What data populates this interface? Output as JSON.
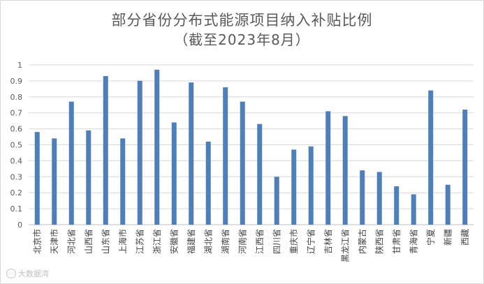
{
  "chart_data": {
    "type": "bar",
    "title": "部分省份分布式能源项目纳入补贴比例",
    "subtitle": "（截至2023年8月）",
    "xlabel": "",
    "ylabel": "",
    "ylim": [
      0,
      1
    ],
    "yticks": [
      "0",
      "0.1",
      "0.2",
      "0.3",
      "0.4",
      "0.5",
      "0.6",
      "0.7",
      "0.8",
      "0.9",
      "1"
    ],
    "grid": true,
    "legend": "none",
    "bar_color": "#4f7fba",
    "categories": [
      "北京市",
      "天津市",
      "河北省",
      "山西省",
      "山东省",
      "上海市",
      "江苏省",
      "浙江省",
      "安徽省",
      "福建省",
      "湖北省",
      "湖南省",
      "河南省",
      "江西省",
      "四川省",
      "重庆市",
      "辽宁省",
      "吉林省",
      "黑龙江省",
      "内蒙古",
      "陕西省",
      "甘肃省",
      "青海省",
      "宁夏",
      "新疆",
      "西藏"
    ],
    "values": [
      0.58,
      0.54,
      0.77,
      0.59,
      0.93,
      0.54,
      0.9,
      0.97,
      0.64,
      0.89,
      0.52,
      0.86,
      0.77,
      0.63,
      0.3,
      0.47,
      0.49,
      0.71,
      0.68,
      0.34,
      0.33,
      0.24,
      0.19,
      0.84,
      0.25,
      0.72
    ]
  },
  "watermark": {
    "text": "大数据湾"
  }
}
